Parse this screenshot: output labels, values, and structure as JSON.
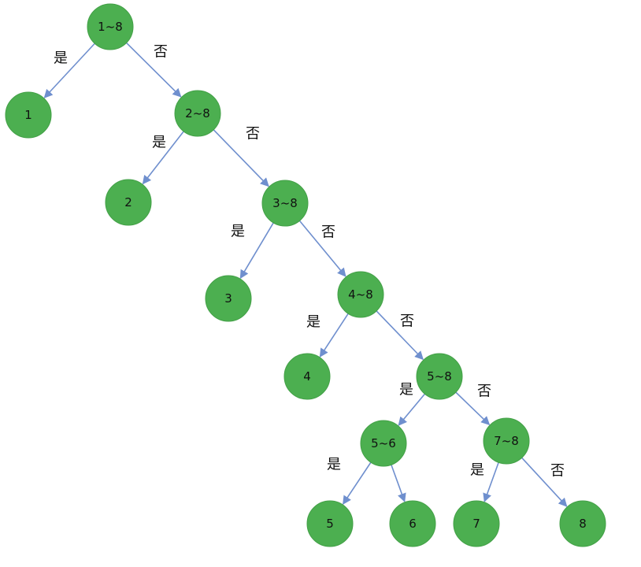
{
  "colors": {
    "node_fill": "#4caf50",
    "edge": "#6f8fce",
    "text": "#111111",
    "background": "#ffffff"
  },
  "labels": {
    "yes": "是",
    "no": "否"
  },
  "nodes": [
    {
      "id": "n1-8",
      "label": "1~8"
    },
    {
      "id": "n1",
      "label": "1"
    },
    {
      "id": "n2-8",
      "label": "2~8"
    },
    {
      "id": "n2",
      "label": "2"
    },
    {
      "id": "n3-8",
      "label": "3~8"
    },
    {
      "id": "n3",
      "label": "3"
    },
    {
      "id": "n4-8",
      "label": "4~8"
    },
    {
      "id": "n4",
      "label": "4"
    },
    {
      "id": "n5-8",
      "label": "5~8"
    },
    {
      "id": "n5-6",
      "label": "5~6"
    },
    {
      "id": "n7-8",
      "label": "7~8"
    },
    {
      "id": "n5",
      "label": "5"
    },
    {
      "id": "n6",
      "label": "6"
    },
    {
      "id": "n7",
      "label": "7"
    },
    {
      "id": "n8",
      "label": "8"
    }
  ],
  "edges": [
    {
      "from": "n1-8",
      "to": "n1",
      "branch": "yes"
    },
    {
      "from": "n1-8",
      "to": "n2-8",
      "branch": "no"
    },
    {
      "from": "n2-8",
      "to": "n2",
      "branch": "yes"
    },
    {
      "from": "n2-8",
      "to": "n3-8",
      "branch": "no"
    },
    {
      "from": "n3-8",
      "to": "n3",
      "branch": "yes"
    },
    {
      "from": "n3-8",
      "to": "n4-8",
      "branch": "no"
    },
    {
      "from": "n4-8",
      "to": "n4",
      "branch": "yes"
    },
    {
      "from": "n4-8",
      "to": "n5-8",
      "branch": "no"
    },
    {
      "from": "n5-8",
      "to": "n5-6",
      "branch": "yes"
    },
    {
      "from": "n5-8",
      "to": "n7-8",
      "branch": "no"
    },
    {
      "from": "n5-6",
      "to": "n5",
      "branch": "yes"
    },
    {
      "from": "n5-6",
      "to": "n6",
      "branch": ""
    },
    {
      "from": "n7-8",
      "to": "n7",
      "branch": "yes"
    },
    {
      "from": "n7-8",
      "to": "n8",
      "branch": "no"
    }
  ]
}
